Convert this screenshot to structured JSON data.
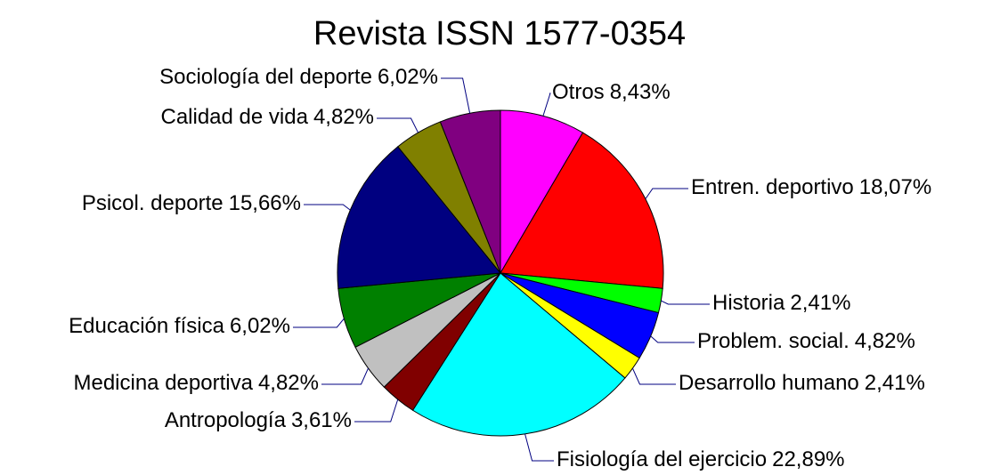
{
  "chart_data": {
    "type": "pie",
    "title": "Revista ISSN 1577-0354",
    "categories": [
      "Otros",
      "Entren. deportivo",
      "Historia",
      "Problem. social.",
      "Desarrollo humano",
      "Fisiología del ejercicio",
      "Antropología",
      "Medicina deportiva",
      "Educación física",
      "Psicol. deporte",
      "Calidad de vida",
      "Sociología del deporte"
    ],
    "values": [
      8.43,
      18.07,
      2.41,
      4.82,
      2.41,
      22.89,
      3.61,
      4.82,
      6.02,
      15.66,
      4.82,
      6.02
    ],
    "value_labels": [
      "8,43%",
      "18,07%",
      "2,41%",
      "4,82%",
      "2,41%",
      "22,89%",
      "3,61%",
      "4,82%",
      "6,02%",
      "15,66%",
      "4,82%",
      "6,02%"
    ],
    "colors": [
      "#ff00ff",
      "#ff0000",
      "#00ff00",
      "#0000ff",
      "#ffff00",
      "#00ffff",
      "#800000",
      "#c0c0c0",
      "#008000",
      "#000080",
      "#808000",
      "#800080"
    ]
  }
}
